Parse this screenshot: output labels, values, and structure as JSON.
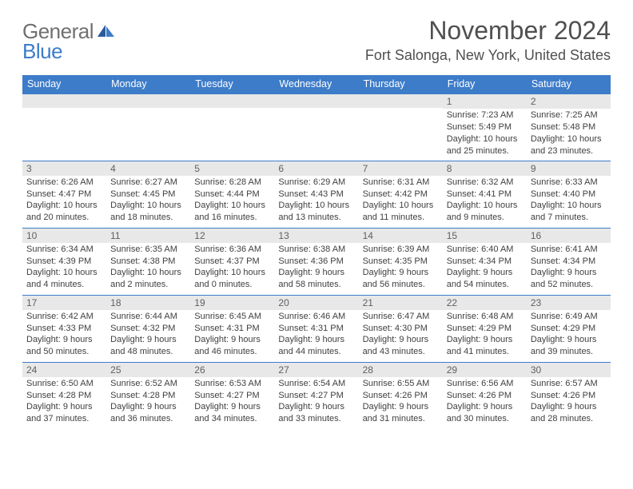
{
  "logo": {
    "text1": "General",
    "text2": "Blue"
  },
  "title": "November 2024",
  "location": "Fort Salonga, New York, United States",
  "colors": {
    "header_bg": "#3d7cc9",
    "header_text": "#ffffff",
    "row_border": "#3d7cc9",
    "daynum_bg": "#e8e8e8",
    "daynum_text": "#606060",
    "body_text": "#404040",
    "title_text": "#505050",
    "logo_general": "#707070",
    "logo_blue": "#3d7cc9"
  },
  "day_headers": [
    "Sunday",
    "Monday",
    "Tuesday",
    "Wednesday",
    "Thursday",
    "Friday",
    "Saturday"
  ],
  "weeks": [
    [
      null,
      null,
      null,
      null,
      null,
      {
        "n": "1",
        "sr": "7:23 AM",
        "ss": "5:49 PM",
        "dl": "10 hours and 25 minutes."
      },
      {
        "n": "2",
        "sr": "7:25 AM",
        "ss": "5:48 PM",
        "dl": "10 hours and 23 minutes."
      }
    ],
    [
      {
        "n": "3",
        "sr": "6:26 AM",
        "ss": "4:47 PM",
        "dl": "10 hours and 20 minutes."
      },
      {
        "n": "4",
        "sr": "6:27 AM",
        "ss": "4:45 PM",
        "dl": "10 hours and 18 minutes."
      },
      {
        "n": "5",
        "sr": "6:28 AM",
        "ss": "4:44 PM",
        "dl": "10 hours and 16 minutes."
      },
      {
        "n": "6",
        "sr": "6:29 AM",
        "ss": "4:43 PM",
        "dl": "10 hours and 13 minutes."
      },
      {
        "n": "7",
        "sr": "6:31 AM",
        "ss": "4:42 PM",
        "dl": "10 hours and 11 minutes."
      },
      {
        "n": "8",
        "sr": "6:32 AM",
        "ss": "4:41 PM",
        "dl": "10 hours and 9 minutes."
      },
      {
        "n": "9",
        "sr": "6:33 AM",
        "ss": "4:40 PM",
        "dl": "10 hours and 7 minutes."
      }
    ],
    [
      {
        "n": "10",
        "sr": "6:34 AM",
        "ss": "4:39 PM",
        "dl": "10 hours and 4 minutes."
      },
      {
        "n": "11",
        "sr": "6:35 AM",
        "ss": "4:38 PM",
        "dl": "10 hours and 2 minutes."
      },
      {
        "n": "12",
        "sr": "6:36 AM",
        "ss": "4:37 PM",
        "dl": "10 hours and 0 minutes."
      },
      {
        "n": "13",
        "sr": "6:38 AM",
        "ss": "4:36 PM",
        "dl": "9 hours and 58 minutes."
      },
      {
        "n": "14",
        "sr": "6:39 AM",
        "ss": "4:35 PM",
        "dl": "9 hours and 56 minutes."
      },
      {
        "n": "15",
        "sr": "6:40 AM",
        "ss": "4:34 PM",
        "dl": "9 hours and 54 minutes."
      },
      {
        "n": "16",
        "sr": "6:41 AM",
        "ss": "4:34 PM",
        "dl": "9 hours and 52 minutes."
      }
    ],
    [
      {
        "n": "17",
        "sr": "6:42 AM",
        "ss": "4:33 PM",
        "dl": "9 hours and 50 minutes."
      },
      {
        "n": "18",
        "sr": "6:44 AM",
        "ss": "4:32 PM",
        "dl": "9 hours and 48 minutes."
      },
      {
        "n": "19",
        "sr": "6:45 AM",
        "ss": "4:31 PM",
        "dl": "9 hours and 46 minutes."
      },
      {
        "n": "20",
        "sr": "6:46 AM",
        "ss": "4:31 PM",
        "dl": "9 hours and 44 minutes."
      },
      {
        "n": "21",
        "sr": "6:47 AM",
        "ss": "4:30 PM",
        "dl": "9 hours and 43 minutes."
      },
      {
        "n": "22",
        "sr": "6:48 AM",
        "ss": "4:29 PM",
        "dl": "9 hours and 41 minutes."
      },
      {
        "n": "23",
        "sr": "6:49 AM",
        "ss": "4:29 PM",
        "dl": "9 hours and 39 minutes."
      }
    ],
    [
      {
        "n": "24",
        "sr": "6:50 AM",
        "ss": "4:28 PM",
        "dl": "9 hours and 37 minutes."
      },
      {
        "n": "25",
        "sr": "6:52 AM",
        "ss": "4:28 PM",
        "dl": "9 hours and 36 minutes."
      },
      {
        "n": "26",
        "sr": "6:53 AM",
        "ss": "4:27 PM",
        "dl": "9 hours and 34 minutes."
      },
      {
        "n": "27",
        "sr": "6:54 AM",
        "ss": "4:27 PM",
        "dl": "9 hours and 33 minutes."
      },
      {
        "n": "28",
        "sr": "6:55 AM",
        "ss": "4:26 PM",
        "dl": "9 hours and 31 minutes."
      },
      {
        "n": "29",
        "sr": "6:56 AM",
        "ss": "4:26 PM",
        "dl": "9 hours and 30 minutes."
      },
      {
        "n": "30",
        "sr": "6:57 AM",
        "ss": "4:26 PM",
        "dl": "9 hours and 28 minutes."
      }
    ]
  ],
  "labels": {
    "sunrise": "Sunrise:",
    "sunset": "Sunset:",
    "daylight": "Daylight:"
  }
}
